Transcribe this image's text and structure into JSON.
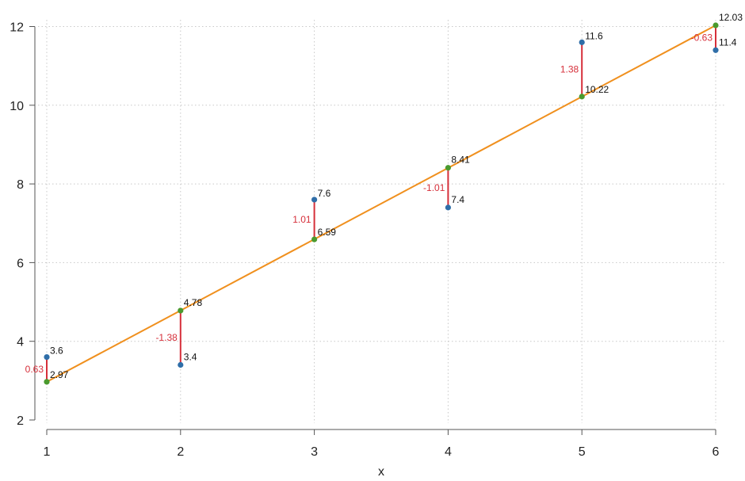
{
  "chart_data": {
    "type": "scatter",
    "title": "",
    "xlabel": "x",
    "ylabel": "",
    "xlim": [
      1,
      6
    ],
    "ylim": [
      2,
      12.2
    ],
    "x_ticks": [
      "1",
      "2",
      "3",
      "4",
      "5",
      "6"
    ],
    "y_ticks": [
      "2",
      "4",
      "6",
      "8",
      "10",
      "12"
    ],
    "grid": true,
    "legend": "none",
    "colors": {
      "observed": "#2f6ea8",
      "fitted": "#4a9a2e",
      "fit_line": "#f0901e",
      "residual": "#d62f3a"
    },
    "points": [
      {
        "x": 1,
        "observed": 3.6,
        "observed_label": "3.6",
        "fitted": 2.97,
        "fitted_label": "2.97",
        "residual": 0.63,
        "residual_label": "0.63"
      },
      {
        "x": 2,
        "observed": 3.4,
        "observed_label": "3.4",
        "fitted": 4.78,
        "fitted_label": "4.78",
        "residual": -1.38,
        "residual_label": "-1.38"
      },
      {
        "x": 3,
        "observed": 7.6,
        "observed_label": "7.6",
        "fitted": 6.59,
        "fitted_label": "6.59",
        "residual": 1.01,
        "residual_label": "1.01"
      },
      {
        "x": 4,
        "observed": 7.4,
        "observed_label": "7.4",
        "fitted": 8.41,
        "fitted_label": "8.41",
        "residual": -1.01,
        "residual_label": "-1.01"
      },
      {
        "x": 5,
        "observed": 11.6,
        "observed_label": "11.6",
        "fitted": 10.22,
        "fitted_label": "10.22",
        "residual": 1.38,
        "residual_label": "1.38"
      },
      {
        "x": 6,
        "observed": 11.4,
        "observed_label": "11.4",
        "fitted": 12.03,
        "fitted_label": "12.03",
        "residual": -0.63,
        "residual_label": "-0.63"
      }
    ]
  }
}
